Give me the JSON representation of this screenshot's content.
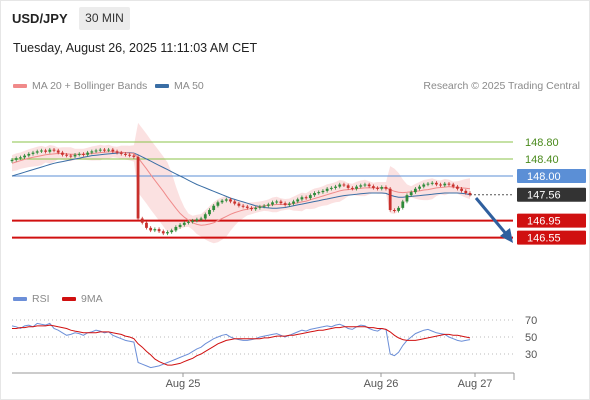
{
  "header": {
    "symbol": "USD/JPY",
    "timeframe": "30 MIN",
    "timestamp": "Tuesday, August 26, 2025 11:11:03 AM CET"
  },
  "legend": {
    "ma20": "MA 20 + Bollinger Bands",
    "ma50": "MA 50",
    "credit": "Research © 2025 Trading Central"
  },
  "rsi_legend": {
    "rsi": "RSI",
    "ma9": "9MA"
  },
  "colors": {
    "ma20": "#f08a8a",
    "ma50": "#3a6ea5",
    "up_candle": "#2e8b3a",
    "down_candle": "#c8302c",
    "support": "#d01010",
    "resistance": "#8bc34a",
    "pivot": "#5b8fd6",
    "rsi": "#6c8fd8",
    "arrow": "#2f5f9e"
  },
  "chart_data": [
    {
      "type": "candlestick",
      "instrument": "USD/JPY",
      "timeframe": "30 MIN",
      "x_ticks": [
        "Aug 25",
        "Aug 26",
        "Aug 27"
      ],
      "y_range": [
        146.3,
        149.2
      ],
      "levels": [
        {
          "value": 148.8,
          "label": "148.80",
          "kind": "resistance"
        },
        {
          "value": 148.4,
          "label": "148.40",
          "kind": "resistance"
        },
        {
          "value": 148.0,
          "label": "148.00",
          "kind": "pivot"
        },
        {
          "value": 147.56,
          "label": "147.56",
          "kind": "last"
        },
        {
          "value": 146.95,
          "label": "146.95",
          "kind": "support"
        },
        {
          "value": 146.55,
          "label": "146.55",
          "kind": "support"
        }
      ],
      "close_series": [
        148.38,
        148.42,
        148.44,
        148.48,
        148.52,
        148.55,
        148.58,
        148.6,
        148.57,
        148.62,
        148.6,
        148.55,
        148.5,
        148.48,
        148.46,
        148.5,
        148.52,
        148.5,
        148.55,
        148.58,
        148.6,
        148.62,
        148.6,
        148.62,
        148.58,
        148.55,
        148.52,
        148.5,
        148.48,
        148.45,
        147.0,
        146.9,
        146.78,
        146.72,
        146.75,
        146.7,
        146.65,
        146.68,
        146.72,
        146.8,
        146.85,
        146.9,
        146.92,
        146.95,
        146.98,
        147.0,
        147.1,
        147.2,
        147.3,
        147.38,
        147.42,
        147.45,
        147.4,
        147.35,
        147.3,
        147.28,
        147.25,
        147.22,
        147.25,
        147.28,
        147.3,
        147.33,
        147.38,
        147.4,
        147.36,
        147.32,
        147.35,
        147.4,
        147.45,
        147.5,
        147.48,
        147.55,
        147.6,
        147.62,
        147.65,
        147.7,
        147.72,
        147.75,
        147.8,
        147.78,
        147.72,
        147.7,
        147.75,
        147.78,
        147.8,
        147.76,
        147.72,
        147.7,
        147.74,
        147.7,
        147.2,
        147.18,
        147.25,
        147.4,
        147.55,
        147.62,
        147.7,
        147.75,
        147.8,
        147.82,
        147.84,
        147.8,
        147.78,
        147.82,
        147.8,
        147.75,
        147.7,
        147.65,
        147.6,
        147.56
      ],
      "ma20_series": [
        148.3,
        148.33,
        148.36,
        148.39,
        148.42,
        148.44,
        148.46,
        148.48,
        148.5,
        148.51,
        148.52,
        148.53,
        148.53,
        148.52,
        148.51,
        148.51,
        148.51,
        148.51,
        148.52,
        148.53,
        148.54,
        148.55,
        148.56,
        148.57,
        148.57,
        148.56,
        148.56,
        148.55,
        148.54,
        148.53,
        148.43,
        148.3,
        148.17,
        148.03,
        147.9,
        147.77,
        147.64,
        147.5,
        147.37,
        147.24,
        147.12,
        147.03,
        146.96,
        146.9,
        146.86,
        146.84,
        146.85,
        146.87,
        146.9,
        146.95,
        147.0,
        147.05,
        147.1,
        147.14,
        147.17,
        147.2,
        147.22,
        147.24,
        147.26,
        147.28,
        147.3,
        147.31,
        147.32,
        147.33,
        147.33,
        147.33,
        147.34,
        147.35,
        147.37,
        147.39,
        147.41,
        147.44,
        147.47,
        147.5,
        147.53,
        147.56,
        147.59,
        147.62,
        147.65,
        147.67,
        147.68,
        147.69,
        147.7,
        147.71,
        147.72,
        147.72,
        147.72,
        147.72,
        147.72,
        147.72,
        147.68,
        147.64,
        147.62,
        147.61,
        147.62,
        147.63,
        147.64,
        147.65,
        147.67,
        147.68,
        147.7,
        147.72,
        147.73,
        147.74,
        147.75,
        147.74,
        147.73,
        147.72,
        147.71,
        147.7
      ],
      "ma50_series": [
        148.0,
        148.03,
        148.06,
        148.09,
        148.12,
        148.15,
        148.18,
        148.21,
        148.24,
        148.27,
        148.3,
        148.32,
        148.34,
        148.36,
        148.38,
        148.4,
        148.42,
        148.44,
        148.46,
        148.48,
        148.49,
        148.5,
        148.51,
        148.52,
        148.53,
        148.54,
        148.55,
        148.55,
        148.55,
        148.54,
        148.5,
        148.45,
        148.4,
        148.35,
        148.3,
        148.25,
        148.2,
        148.15,
        148.1,
        148.05,
        148.0,
        147.95,
        147.9,
        147.85,
        147.8,
        147.76,
        147.72,
        147.68,
        147.64,
        147.6,
        147.56,
        147.52,
        147.48,
        147.45,
        147.42,
        147.39,
        147.36,
        147.33,
        147.3,
        147.28,
        147.26,
        147.25,
        147.24,
        147.24,
        147.25,
        147.26,
        147.28,
        147.3,
        147.32,
        147.34,
        147.36,
        147.38,
        147.4,
        147.42,
        147.44,
        147.46,
        147.48,
        147.5,
        147.52,
        147.54,
        147.55,
        147.56,
        147.57,
        147.58,
        147.59,
        147.6,
        147.6,
        147.6,
        147.6,
        147.59,
        147.55,
        147.52,
        147.5,
        147.5,
        147.51,
        147.52,
        147.53,
        147.54,
        147.55,
        147.56,
        147.57,
        147.58,
        147.59,
        147.6,
        147.6,
        147.6,
        147.6,
        147.59,
        147.58,
        147.56
      ]
    },
    {
      "type": "line",
      "title": "RSI",
      "y_ticks": [
        70,
        50,
        30
      ],
      "y_range": [
        10,
        90
      ],
      "x_ticks": [
        "Aug 25",
        "Aug 26",
        "Aug 27"
      ],
      "series": [
        {
          "name": "RSI",
          "values": [
            63,
            62,
            60,
            63,
            64,
            62,
            66,
            65,
            64,
            66,
            60,
            58,
            55,
            52,
            53,
            55,
            54,
            52,
            55,
            56,
            58,
            57,
            55,
            56,
            52,
            50,
            48,
            46,
            45,
            44,
            20,
            18,
            16,
            14,
            15,
            16,
            18,
            20,
            22,
            24,
            26,
            28,
            30,
            33,
            36,
            38,
            42,
            45,
            48,
            50,
            52,
            53,
            50,
            48,
            47,
            46,
            46,
            47,
            48,
            50,
            51,
            52,
            53,
            54,
            52,
            50,
            52,
            54,
            56,
            58,
            57,
            59,
            60,
            61,
            62,
            63,
            62,
            64,
            65,
            63,
            60,
            59,
            62,
            64,
            63,
            60,
            58,
            57,
            60,
            59,
            30,
            28,
            32,
            40,
            46,
            50,
            54,
            56,
            58,
            59,
            57,
            55,
            54,
            53,
            50,
            48,
            46,
            45,
            46,
            47
          ]
        },
        {
          "name": "9MA",
          "values": [
            60,
            60,
            61,
            61,
            62,
            62,
            63,
            63,
            63,
            64,
            63,
            62,
            61,
            60,
            58,
            57,
            56,
            55,
            55,
            55,
            55,
            56,
            56,
            56,
            55,
            54,
            53,
            51,
            50,
            48,
            42,
            38,
            33,
            29,
            24,
            21,
            19,
            17,
            17,
            18,
            19,
            21,
            23,
            25,
            28,
            30,
            33,
            36,
            39,
            42,
            44,
            46,
            47,
            48,
            48,
            48,
            48,
            48,
            48,
            48,
            49,
            49,
            50,
            51,
            51,
            51,
            52,
            52,
            53,
            54,
            55,
            56,
            57,
            58,
            58,
            59,
            60,
            61,
            61,
            62,
            62,
            62,
            62,
            62,
            62,
            61,
            61,
            60,
            60,
            59,
            56,
            52,
            49,
            47,
            46,
            46,
            46,
            47,
            48,
            49,
            50,
            51,
            52,
            53,
            53,
            52,
            52,
            51,
            50,
            49
          ]
        }
      ]
    }
  ]
}
